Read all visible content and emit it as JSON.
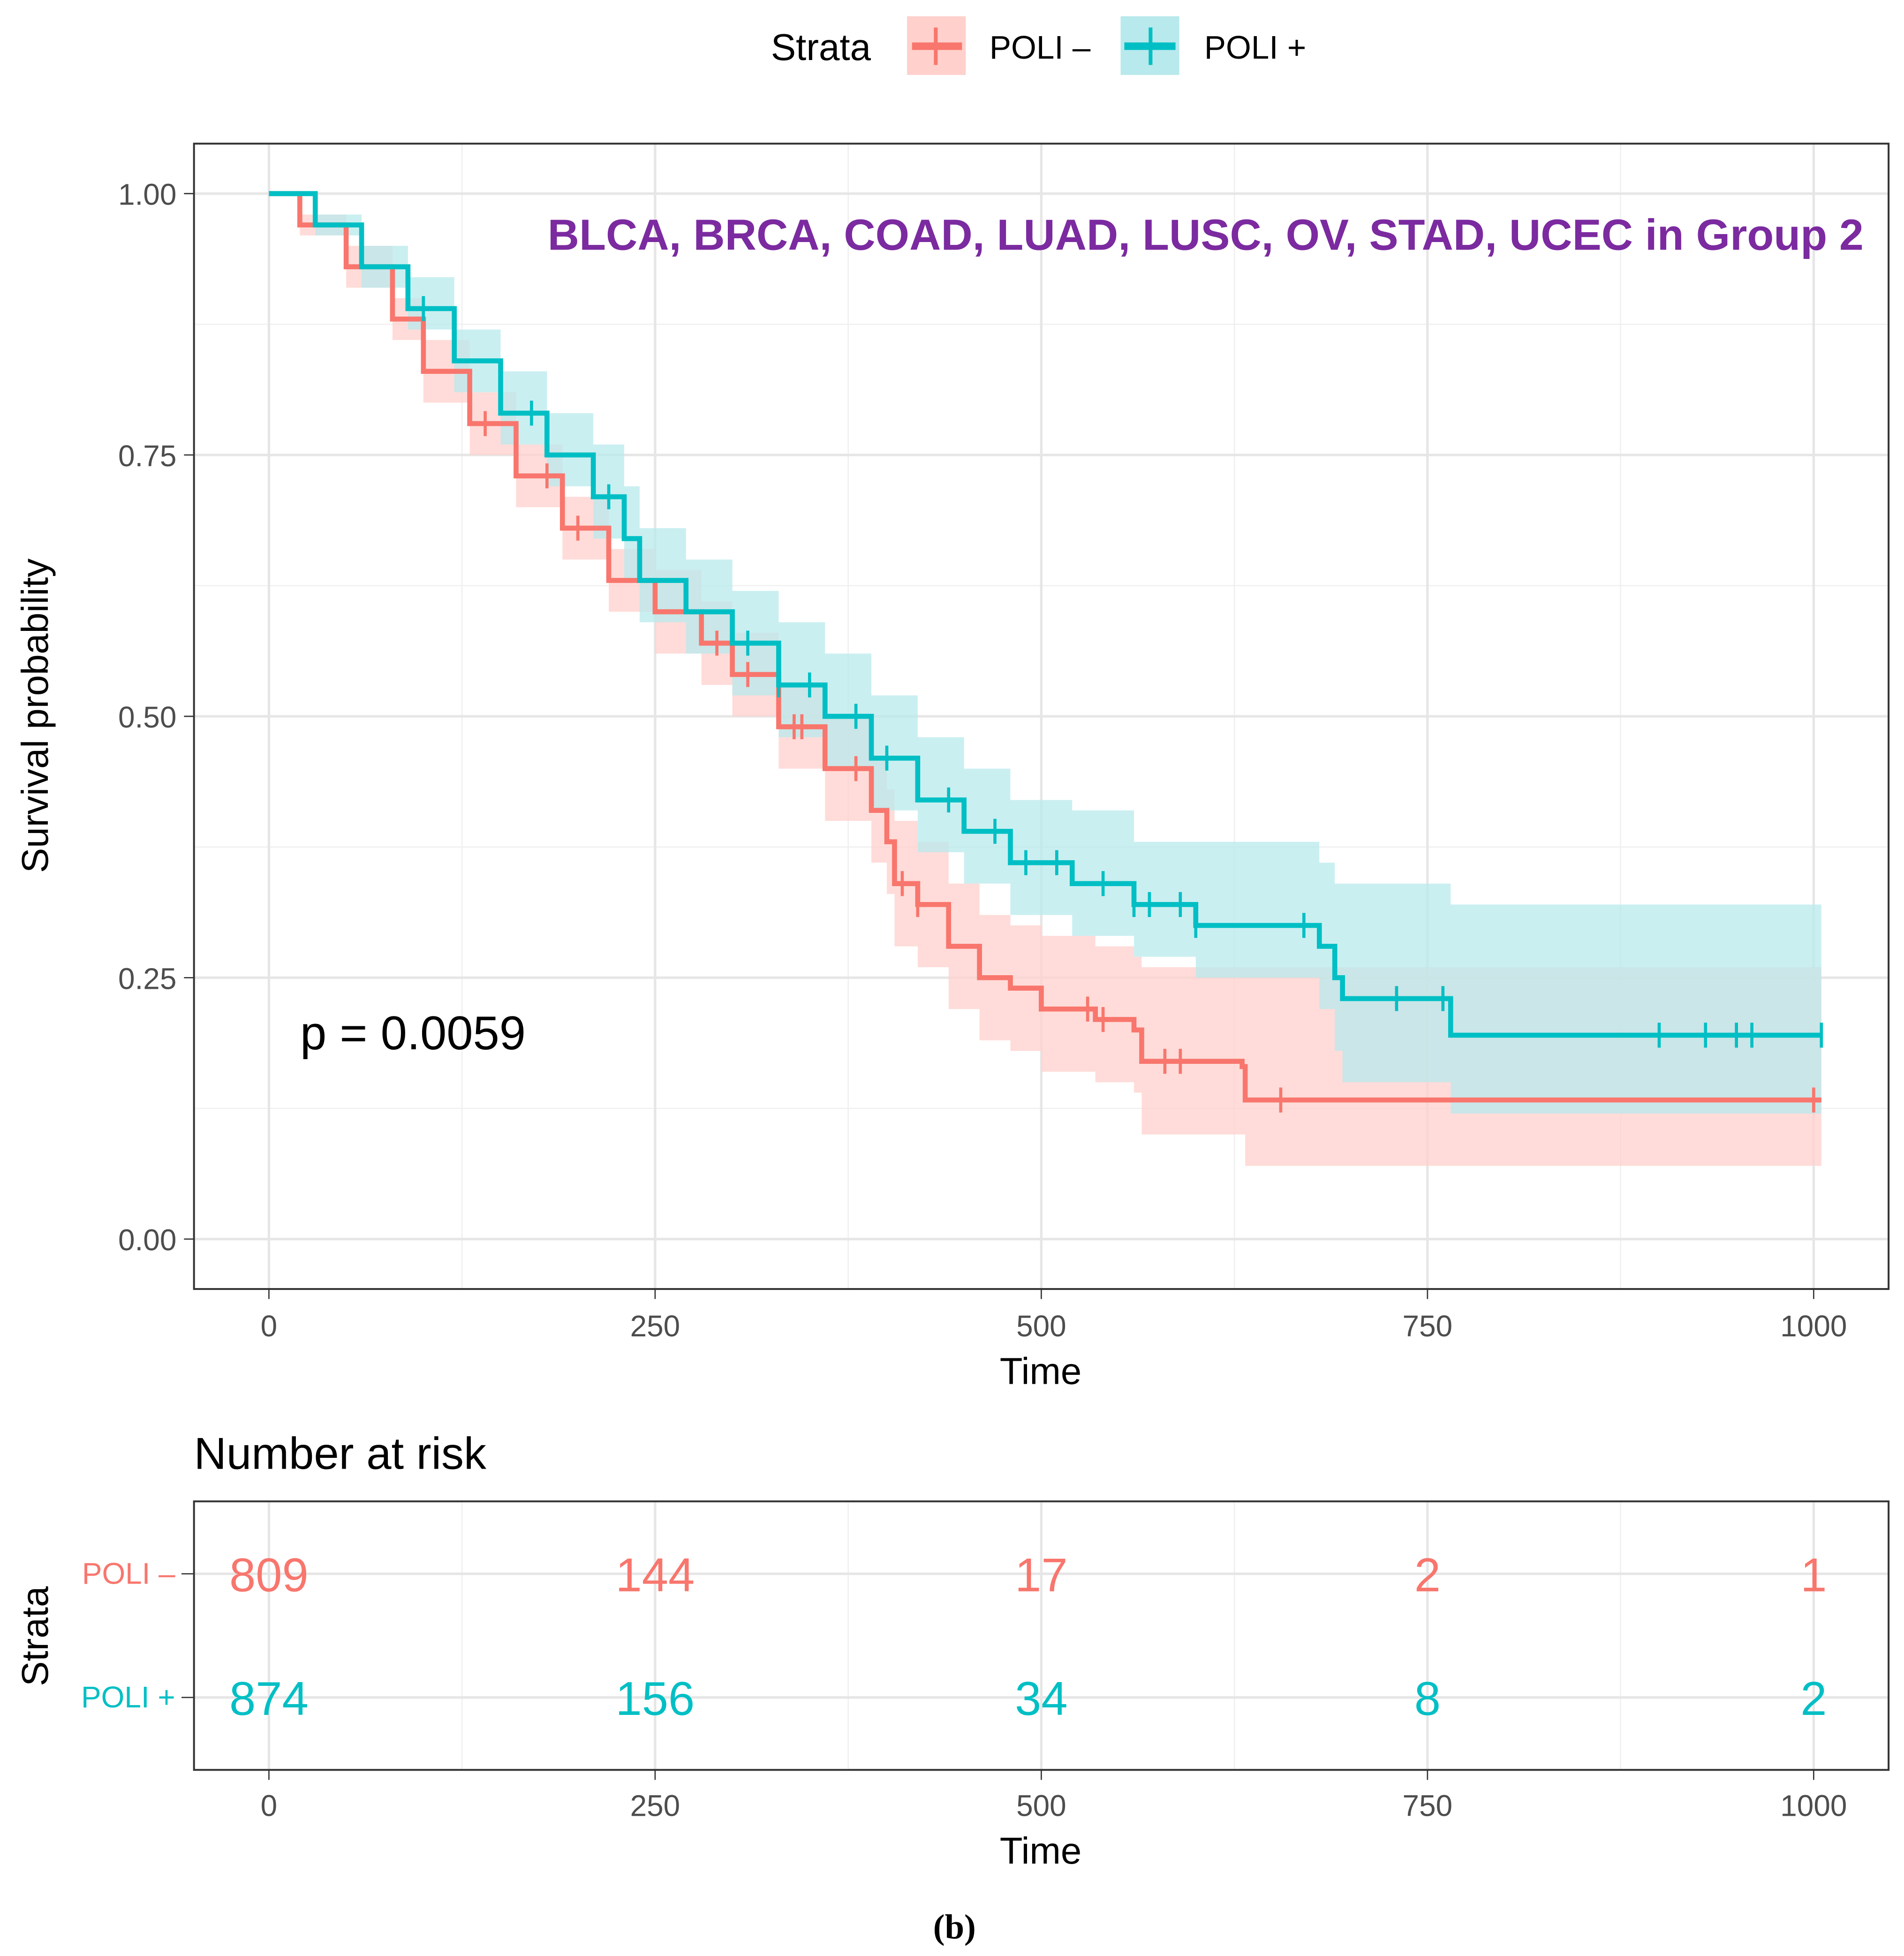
{
  "chart_data": {
    "type": "line",
    "subtype": "kaplan-meier",
    "legend": {
      "title": "Strata",
      "placement": "top",
      "entries": [
        "POLI –",
        "POLI +"
      ]
    },
    "annotation": "BLCA, BRCA, COAD, LUAD, LUSC, OV, STAD, UCEC in Group 2",
    "annotation_color": "#7b2aa0",
    "pvalue_label": "p = 0.0059",
    "xlabel": "Time",
    "ylabel": "Survival probability",
    "xlim": [
      -25,
      1030
    ],
    "ylim": [
      -0.05,
      1.05
    ],
    "xticks": [
      "0",
      "250",
      "500",
      "750",
      "1000"
    ],
    "xtick_values": [
      0,
      250,
      500,
      750,
      1000
    ],
    "yticks": [
      "0.00",
      "0.25",
      "0.50",
      "0.75",
      "1.00"
    ],
    "ytick_values": [
      0,
      0.25,
      0.5,
      0.75,
      1.0
    ],
    "grid": true,
    "series": [
      {
        "name": "POLI –",
        "color": "#f8766d",
        "fill": "#ffd0cc",
        "time": [
          0,
          20,
          50,
          80,
          100,
          130,
          160,
          190,
          220,
          250,
          280,
          300,
          330,
          360,
          390,
          400,
          405,
          420,
          440,
          460,
          480,
          500,
          535,
          560,
          565,
          630,
          632,
          1005
        ],
        "surv": [
          1,
          0.97,
          0.93,
          0.88,
          0.83,
          0.78,
          0.73,
          0.68,
          0.63,
          0.6,
          0.57,
          0.54,
          0.49,
          0.45,
          0.41,
          0.38,
          0.34,
          0.32,
          0.28,
          0.25,
          0.24,
          0.22,
          0.21,
          0.2,
          0.17,
          0.165,
          0.133,
          0.133
        ],
        "lower": [
          1,
          0.96,
          0.91,
          0.86,
          0.8,
          0.75,
          0.7,
          0.65,
          0.6,
          0.56,
          0.53,
          0.5,
          0.45,
          0.4,
          0.36,
          0.33,
          0.28,
          0.26,
          0.22,
          0.19,
          0.18,
          0.16,
          0.15,
          0.14,
          0.1,
          0.1,
          0.07,
          0.07
        ],
        "upper": [
          1,
          0.98,
          0.95,
          0.9,
          0.86,
          0.81,
          0.76,
          0.71,
          0.66,
          0.64,
          0.61,
          0.58,
          0.53,
          0.5,
          0.46,
          0.43,
          0.4,
          0.38,
          0.34,
          0.31,
          0.3,
          0.29,
          0.28,
          0.27,
          0.26,
          0.26,
          0.26,
          0.26
        ],
        "censored": [
          140,
          180,
          200,
          290,
          310,
          340,
          345,
          380,
          410,
          420,
          530,
          540,
          580,
          590,
          655,
          1000
        ],
        "at_risk": [
          809,
          144,
          17,
          2,
          1
        ]
      },
      {
        "name": "POLI +",
        "color": "#00bfc4",
        "fill": "#b8e9ec",
        "time": [
          0,
          30,
          60,
          90,
          120,
          150,
          180,
          210,
          230,
          240,
          270,
          300,
          330,
          360,
          390,
          420,
          450,
          480,
          520,
          560,
          600,
          670,
          680,
          690,
          695,
          765,
          1005
        ],
        "surv": [
          1,
          0.97,
          0.93,
          0.89,
          0.84,
          0.79,
          0.75,
          0.71,
          0.67,
          0.63,
          0.6,
          0.57,
          0.53,
          0.5,
          0.46,
          0.42,
          0.39,
          0.36,
          0.34,
          0.32,
          0.3,
          0.3,
          0.28,
          0.25,
          0.23,
          0.195,
          0.195
        ],
        "lower": [
          1,
          0.96,
          0.91,
          0.87,
          0.81,
          0.76,
          0.72,
          0.67,
          0.63,
          0.59,
          0.56,
          0.52,
          0.48,
          0.45,
          0.41,
          0.37,
          0.34,
          0.31,
          0.29,
          0.27,
          0.25,
          0.25,
          0.22,
          0.18,
          0.15,
          0.12,
          0.12
        ],
        "upper": [
          1,
          0.98,
          0.95,
          0.92,
          0.87,
          0.83,
          0.79,
          0.76,
          0.72,
          0.68,
          0.65,
          0.62,
          0.59,
          0.56,
          0.52,
          0.48,
          0.45,
          0.42,
          0.41,
          0.38,
          0.38,
          0.38,
          0.36,
          0.34,
          0.34,
          0.32,
          0.32
        ],
        "censored": [
          100,
          170,
          220,
          310,
          330,
          350,
          380,
          400,
          440,
          470,
          490,
          510,
          540,
          560,
          570,
          590,
          600,
          670,
          730,
          760,
          900,
          930,
          950,
          960,
          1005
        ],
        "at_risk": [
          874,
          156,
          34,
          8,
          2
        ]
      }
    ],
    "risk_table": {
      "title": "Number at risk",
      "ylabel": "Strata",
      "row_labels": [
        "POLI –",
        "POLI +"
      ],
      "xlabel": "Time"
    }
  },
  "caption": "(b)"
}
